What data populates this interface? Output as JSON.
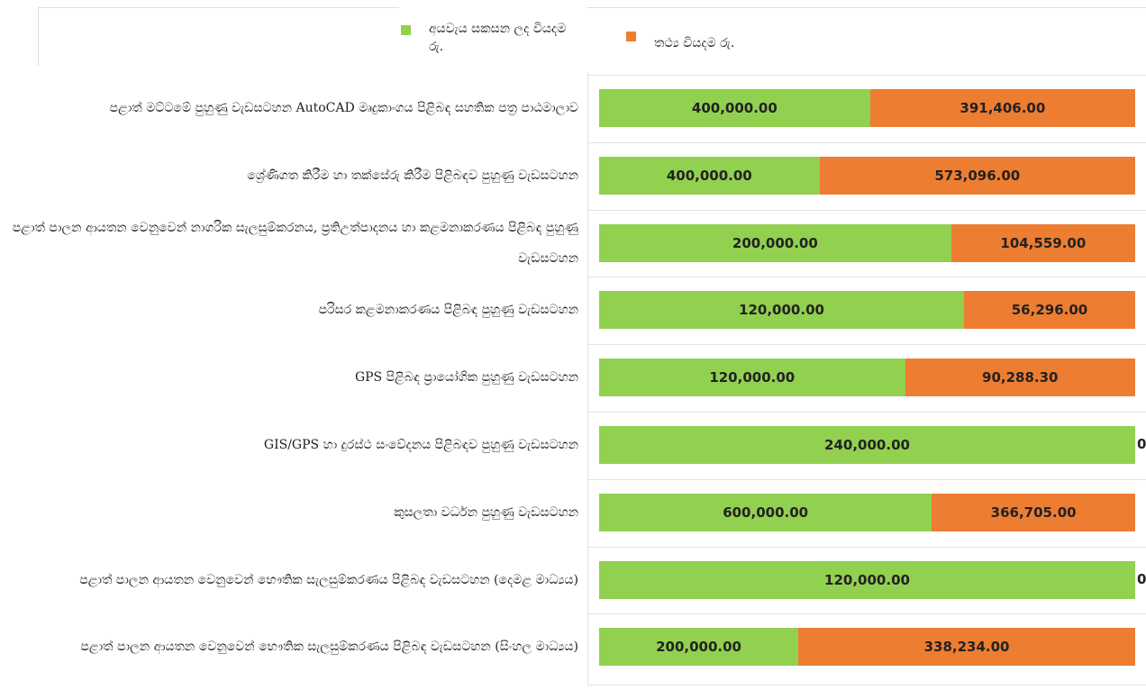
{
  "chart_data": {
    "type": "bar",
    "orientation": "horizontal",
    "stacking": "percent",
    "categories": [
      "පළාත් මට්ටමේ පුහුණු වැඩසටහන  AutoCAD  මෘදුකාංගය පිළිබඳ සහතික පත්‍ර පාඨමාලාව",
      "ශ්‍රේණිගත කිරීම හා තක්සේරු  කිරීම පිළිබඳව පුහුණු වැඩසටහන",
      "පළාත් පාලන ආයතන වෙනුවෙන් නාගරික සැලසුම්කරනය, ප්‍රතිඋත්පාදනය හා කළමනාකරණය  පිළිබඳ පුහුණු වැඩසටහන",
      "පරිසර කළමනාකරණය පිළිබඳ පුහුණු වැඩසටහන",
      "GPS   පිළිබඳ ප්‍රායෝගික පුහුණු වැඩසටහන",
      "GIS/GPS  හා දුරස්ථ සංවේදනය පිළිබඳව පුහුණු වැඩසටහන",
      "කුසලතා වර්ධන පුහුණු වැඩසටහන",
      "පළාත් පාලන ආයතන වෙනුවෙන් භෞතික සැලසුම්කරණය පිළිබඳ වැඩසටහන (දෙමළ මාධ්‍යය)",
      "පළාත් පාලන ආයතන වෙනුවෙන් භෞතික සැලසුම්කරණය පිළිබඳ වැඩසටහන (සිංහල මාධ්‍යය)"
    ],
    "series": [
      {
        "name": "අයවැය සකසන ලද වියදම රු.",
        "color": "#92d050",
        "values": [
          400000,
          400000,
          200000,
          120000,
          120000,
          240000,
          600000,
          120000,
          200000
        ],
        "value_labels": [
          "400,000.00",
          "400,000.00",
          "200,000.00",
          "120,000.00",
          "120,000.00",
          "240,000.00",
          "600,000.00",
          "120,000.00",
          "200,000.00"
        ]
      },
      {
        "name": "තථ්‍ය වියදම රු.",
        "color": "#ed7d31",
        "values": [
          391406,
          573096,
          104559,
          56296,
          90288.3,
          0,
          366705,
          0,
          338234
        ],
        "value_labels": [
          "391,406.00",
          "573,096.00",
          "104,559.00",
          "56,296.00",
          "90,288.30",
          "0",
          "366,705.00",
          "0",
          "338,234.00"
        ]
      }
    ]
  }
}
